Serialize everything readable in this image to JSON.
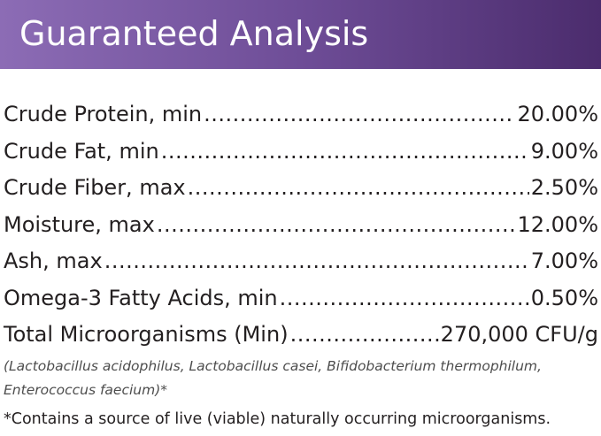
{
  "header": {
    "title": "Guaranteed Analysis"
  },
  "table": {
    "rows": [
      [
        "Crude Protein, min",
        "20.00%"
      ],
      [
        "Crude Fat, min",
        "9.00%"
      ],
      [
        "Crude Fiber, max",
        "2.50%"
      ],
      [
        "Moisture, max",
        "12.00%"
      ],
      [
        "Ash, max",
        "7.00%"
      ],
      [
        "Omega-3 Fatty Acids, min",
        "0.50%"
      ],
      [
        "Total Microorganisms (Min)",
        "270,000 CFU/g"
      ]
    ]
  },
  "notes": {
    "organisms": [
      "(Lactobacillus acidophilus, Lactobacillus casei, Bifidobacterium thermophilum,",
      "Enterococcus faecium)*"
    ],
    "footnote": "*Contains a source of live (viable) naturally occurring microorganisms."
  }
}
